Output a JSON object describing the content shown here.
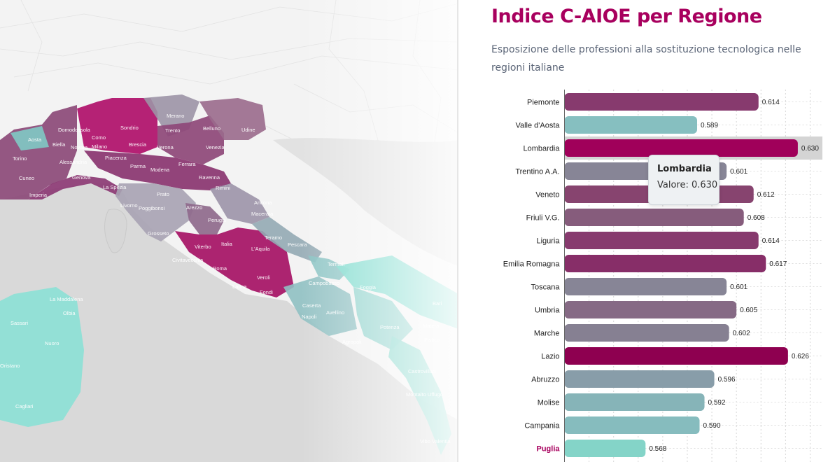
{
  "map": {
    "labels": [
      {
        "text": "Merano"
      },
      {
        "text": "Domodossola"
      },
      {
        "text": "Sondrio"
      },
      {
        "text": "Trento"
      },
      {
        "text": "Belluno"
      },
      {
        "text": "Udine"
      },
      {
        "text": "Como"
      },
      {
        "text": "Aosta"
      },
      {
        "text": "Biella"
      },
      {
        "text": "Novara"
      },
      {
        "text": "Milano"
      },
      {
        "text": "Brescia"
      },
      {
        "text": "Verona"
      },
      {
        "text": "Venezia"
      },
      {
        "text": "Torino"
      },
      {
        "text": "Alessandria"
      },
      {
        "text": "Piacenza"
      },
      {
        "text": "Parma"
      },
      {
        "text": "Modena"
      },
      {
        "text": "Ferrara"
      },
      {
        "text": "Cuneo"
      },
      {
        "text": "Genova"
      },
      {
        "text": "La Spezia"
      },
      {
        "text": "Ravenna"
      },
      {
        "text": "Imperia"
      },
      {
        "text": "Rimini"
      },
      {
        "text": "Prato"
      },
      {
        "text": "Livorno"
      },
      {
        "text": "Poggibonsi"
      },
      {
        "text": "Arezzo"
      },
      {
        "text": "Ancona"
      },
      {
        "text": "Macerata"
      },
      {
        "text": "Grosseto"
      },
      {
        "text": "Perugia"
      },
      {
        "text": "Teramo"
      },
      {
        "text": "Pescara"
      },
      {
        "text": "Viterbo"
      },
      {
        "text": "Italia"
      },
      {
        "text": "L'Aquila"
      },
      {
        "text": "Civitavecchia"
      },
      {
        "text": "Roma"
      },
      {
        "text": "Termoli"
      },
      {
        "text": "Veroli"
      },
      {
        "text": "Latina"
      },
      {
        "text": "Fondi"
      },
      {
        "text": "Campobasso"
      },
      {
        "text": "Foggia"
      },
      {
        "text": "La Maddalena"
      },
      {
        "text": "Olbia"
      },
      {
        "text": "Sassari"
      },
      {
        "text": "Caserta"
      },
      {
        "text": "Avellino"
      },
      {
        "text": "Napoli"
      },
      {
        "text": "Bari"
      },
      {
        "text": "Nuoro"
      },
      {
        "text": "Potenza"
      },
      {
        "text": "Matera"
      },
      {
        "text": "Pisticci"
      },
      {
        "text": "Agropoli"
      },
      {
        "text": "Oristano"
      },
      {
        "text": "Castrovillari"
      },
      {
        "text": "Cagliari"
      },
      {
        "text": "Montalto Uffugo"
      },
      {
        "text": "Vibo Valentia"
      }
    ]
  },
  "panel": {
    "title": "Indice C-AIOE per Regione",
    "subtitle": "Esposizione delle professioni alla sostituzione tecnologica nelle regioni italiane"
  },
  "chart_data": {
    "type": "bar",
    "orientation": "horizontal",
    "title": "Indice C-AIOE per Regione",
    "subtitle": "Esposizione delle professioni alla sostituzione tecnologica nelle regioni italiane",
    "categories": [
      "Piemonte",
      "Valle d'Aosta",
      "Lombardia",
      "Trentino A.A.",
      "Veneto",
      "Friuli V.G.",
      "Liguria",
      "Emilia Romagna",
      "Toscana",
      "Umbria",
      "Marche",
      "Lazio",
      "Abruzzo",
      "Molise",
      "Campania",
      "Puglia"
    ],
    "values": [
      0.614,
      0.589,
      0.63,
      0.601,
      0.612,
      0.608,
      0.614,
      0.617,
      0.601,
      0.605,
      0.602,
      0.626,
      0.596,
      0.592,
      0.59,
      0.568
    ],
    "value_labels": [
      "0.614",
      "0.589",
      "0.630",
      "0.601",
      "0.612",
      "0.608",
      "0.614",
      "0.617",
      "0.601",
      "0.605",
      "0.602",
      "0.626",
      "0.596",
      "0.592",
      "0.590",
      "0.568"
    ],
    "colors": [
      "#873a6e",
      "#86bfc0",
      "#a0005a",
      "#878596",
      "#87446f",
      "#865c7c",
      "#873a6e",
      "#872e68",
      "#878596",
      "#866a85",
      "#868092",
      "#8e0050",
      "#889da9",
      "#86b4b8",
      "#86bcbe",
      "#84d4c8"
    ],
    "highlighted_category": "Puglia",
    "hovered_category": "Lombardia",
    "grid": true,
    "gridline_style": "dashed vertical",
    "xlim": [
      0.535,
      0.64
    ]
  },
  "tooltip": {
    "title": "Lombardia",
    "value": "Valore: 0.630"
  },
  "colors": {
    "title": "#a8005e",
    "subtitle": "#5b6577",
    "hover_band": "#d4d4d4"
  }
}
